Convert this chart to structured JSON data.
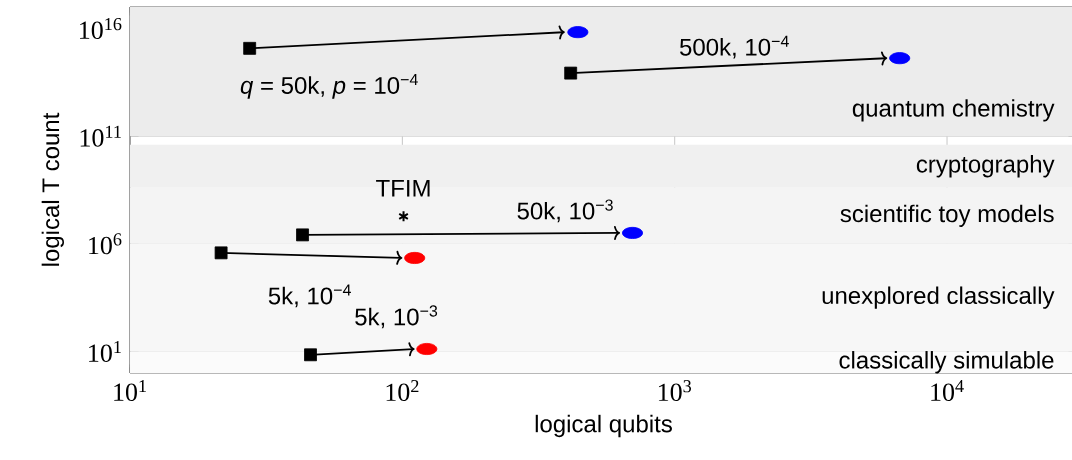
{
  "chart_data": {
    "type": "scatter",
    "xlabel": "logical qubits",
    "ylabel": "logical T count",
    "log": "xy",
    "grid": true,
    "xlim": [
      10,
      30000
    ],
    "ylim": [
      1,
      1e+17
    ],
    "xticks": [
      {
        "value": 10,
        "label": "10$^{1}$"
      },
      {
        "value": 100,
        "label": "10$^{2}$"
      },
      {
        "value": 1000,
        "label": "10$^{3}$"
      },
      {
        "value": 10000,
        "label": "10$^{4}$"
      }
    ],
    "yticks": [
      {
        "value": 10,
        "label": "10$^{1}$"
      },
      {
        "value": 1000000.0,
        "label": "10$^{6}$"
      },
      {
        "value": 100000000000.0,
        "label": "10$^{11}$"
      },
      {
        "value": 1e+16,
        "label": "10$^{16}$"
      }
    ],
    "bands": [
      {
        "axis": "y",
        "from": 100000000000.0,
        "to": 1e+17,
        "label": "quantum chemistry",
        "color": "#ececec"
      },
      {
        "axis": "y",
        "from": 400000000.0,
        "to": 40000000000.0,
        "label": "cryptography",
        "color": "#f0f0f0"
      },
      {
        "axis": "y",
        "from": 1000000.0,
        "to": 400000000.0,
        "label": "scientific toy models",
        "color": "#f4f4f4"
      },
      {
        "axis": "y",
        "from": 10,
        "to": 1000000.0,
        "label": "unexplored classically",
        "color": "#f7f7f7"
      },
      {
        "axis": "y",
        "from": 1,
        "to": 10,
        "label": "classically simulable",
        "color": "#fbfbfb"
      }
    ],
    "series": [
      {
        "type": "line",
        "name": "*q* = 50k, *p* = 10$^{−4}$",
        "color": "#000000",
        "x": [
          27.5,
          395
        ],
        "values": [
          1200000000000000.0,
          6800000000000000.0
        ]
      },
      {
        "type": "line",
        "name": "500k, 10$^{−4}$",
        "color": "#000000",
        "x": [
          415,
          6030
        ],
        "values": [
          85000000000000.0,
          420000000000000.0
        ]
      },
      {
        "type": "line",
        "name": "50k, 10$^{−3}$",
        "color": "#000000",
        "x": [
          43,
          630
        ],
        "values": [
          2600000.0,
          3200000.0
        ]
      },
      {
        "type": "line",
        "name": "5k, 10$^{−4}$",
        "color": "#000000",
        "x": [
          21.6,
          100
        ],
        "values": [
          380000.0,
          220000.0
        ]
      },
      {
        "type": "line",
        "name": "5k, 10$^{−3}$",
        "color": "#000000",
        "x": [
          46,
          111
        ],
        "values": [
          7,
          13
        ]
      },
      {
        "color": "#000000",
        "marker": "square",
        "x": [
          27.5,
          415,
          43,
          21.6,
          46
        ],
        "values": [
          1200000000000000.0,
          85000000000000.0,
          2600000.0,
          380000.0,
          7
        ]
      },
      {
        "color": "#0000ff",
        "marker": "circle",
        "x": [
          441,
          6700,
          700
        ],
        "values": [
          6800000000000000.0,
          420000000000000.0,
          3200000.0
        ]
      },
      {
        "color": "#ff0000",
        "marker": "circle",
        "x": [
          111,
          123
        ],
        "values": [
          220000.0,
          13
        ]
      },
      {
        "name": "TFIM",
        "color": "#000000",
        "marker": "cross",
        "x": [
          101
        ],
        "values": [
          19000000.0
        ]
      }
    ]
  }
}
